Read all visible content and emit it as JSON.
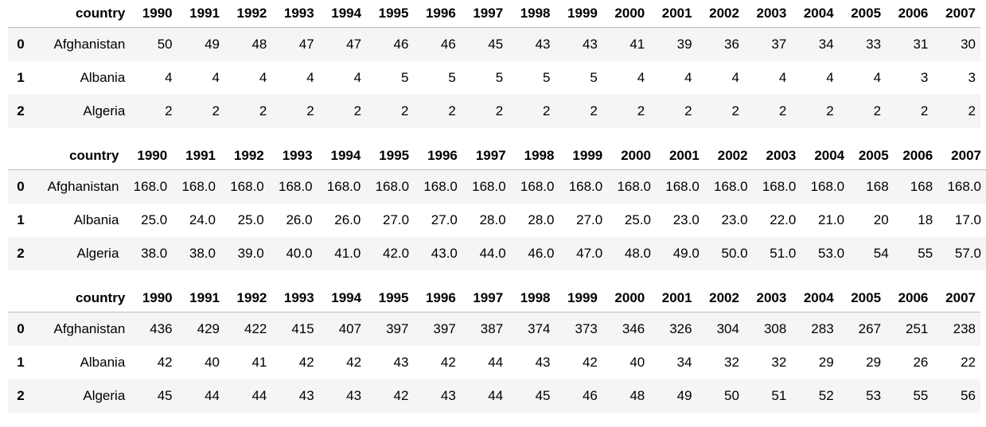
{
  "tables": [
    {
      "columns": [
        "",
        "country",
        "1990",
        "1991",
        "1992",
        "1993",
        "1994",
        "1995",
        "1996",
        "1997",
        "1998",
        "1999",
        "2000",
        "2001",
        "2002",
        "2003",
        "2004",
        "2005",
        "2006",
        "2007"
      ],
      "rows": [
        [
          "0",
          "Afghanistan",
          "50",
          "49",
          "48",
          "47",
          "47",
          "46",
          "46",
          "45",
          "43",
          "43",
          "41",
          "39",
          "36",
          "37",
          "34",
          "33",
          "31",
          "30"
        ],
        [
          "1",
          "Albania",
          "4",
          "4",
          "4",
          "4",
          "4",
          "5",
          "5",
          "5",
          "5",
          "5",
          "4",
          "4",
          "4",
          "4",
          "4",
          "4",
          "3",
          "3"
        ],
        [
          "2",
          "Algeria",
          "2",
          "2",
          "2",
          "2",
          "2",
          "2",
          "2",
          "2",
          "2",
          "2",
          "2",
          "2",
          "2",
          "2",
          "2",
          "2",
          "2",
          "2"
        ]
      ]
    },
    {
      "columns": [
        "",
        "country",
        "1990",
        "1991",
        "1992",
        "1993",
        "1994",
        "1995",
        "1996",
        "1997",
        "1998",
        "1999",
        "2000",
        "2001",
        "2002",
        "2003",
        "2004",
        "2005",
        "2006",
        "2007"
      ],
      "rows": [
        [
          "0",
          "Afghanistan",
          "168.0",
          "168.0",
          "168.0",
          "168.0",
          "168.0",
          "168.0",
          "168.0",
          "168.0",
          "168.0",
          "168.0",
          "168.0",
          "168.0",
          "168.0",
          "168.0",
          "168.0",
          "168",
          "168",
          "168.0"
        ],
        [
          "1",
          "Albania",
          "25.0",
          "24.0",
          "25.0",
          "26.0",
          "26.0",
          "27.0",
          "27.0",
          "28.0",
          "28.0",
          "27.0",
          "25.0",
          "23.0",
          "23.0",
          "22.0",
          "21.0",
          "20",
          "18",
          "17.0"
        ],
        [
          "2",
          "Algeria",
          "38.0",
          "38.0",
          "39.0",
          "40.0",
          "41.0",
          "42.0",
          "43.0",
          "44.0",
          "46.0",
          "47.0",
          "48.0",
          "49.0",
          "50.0",
          "51.0",
          "53.0",
          "54",
          "55",
          "57.0"
        ]
      ]
    },
    {
      "columns": [
        "",
        "country",
        "1990",
        "1991",
        "1992",
        "1993",
        "1994",
        "1995",
        "1996",
        "1997",
        "1998",
        "1999",
        "2000",
        "2001",
        "2002",
        "2003",
        "2004",
        "2005",
        "2006",
        "2007"
      ],
      "rows": [
        [
          "0",
          "Afghanistan",
          "436",
          "429",
          "422",
          "415",
          "407",
          "397",
          "397",
          "387",
          "374",
          "373",
          "346",
          "326",
          "304",
          "308",
          "283",
          "267",
          "251",
          "238"
        ],
        [
          "1",
          "Albania",
          "42",
          "40",
          "41",
          "42",
          "42",
          "43",
          "42",
          "44",
          "43",
          "42",
          "40",
          "34",
          "32",
          "32",
          "29",
          "29",
          "26",
          "22"
        ],
        [
          "2",
          "Algeria",
          "45",
          "44",
          "44",
          "43",
          "43",
          "42",
          "43",
          "44",
          "45",
          "46",
          "48",
          "49",
          "50",
          "51",
          "52",
          "53",
          "55",
          "56"
        ]
      ]
    }
  ]
}
